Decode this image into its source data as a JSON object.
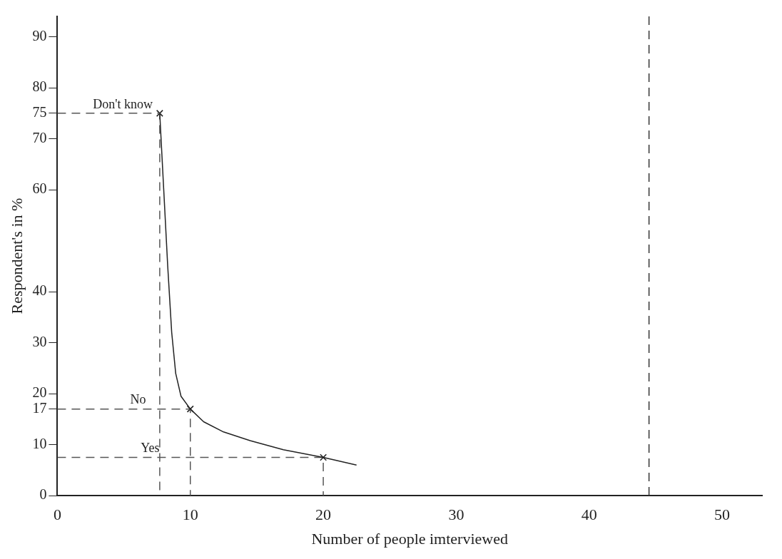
{
  "chart_data": {
    "type": "line",
    "xlabel": "Number of people imterviewed",
    "ylabel": "Respondent's in %",
    "xlim": [
      0,
      53
    ],
    "xticks": [
      0,
      10,
      20,
      30,
      40,
      50
    ],
    "ylim": [
      0,
      94
    ],
    "yticks": [
      0,
      10,
      17,
      20,
      30,
      40,
      60,
      70,
      75,
      80,
      90
    ],
    "series": [
      {
        "color": "#222222",
        "marker": "none",
        "line_style": "solid",
        "x": [
          7.7,
          8.0,
          8.3,
          8.6,
          8.9,
          9.3,
          10,
          11,
          12.5,
          14.5,
          17,
          20,
          22.5
        ],
        "values": [
          75,
          60,
          45,
          32,
          24,
          19.5,
          17,
          14.5,
          12.5,
          10.8,
          9,
          7.5,
          6
        ]
      },
      {
        "name": "Don't know",
        "color": "#555555",
        "marker": "none",
        "line_style": "dashed",
        "x": [
          0,
          7.7,
          7.7
        ],
        "values": [
          75,
          75,
          0
        ]
      },
      {
        "name": "No",
        "color": "#555555",
        "marker": "none",
        "line_style": "dashed",
        "x": [
          0,
          10,
          10
        ],
        "values": [
          17,
          17,
          0
        ]
      },
      {
        "name": "Yes",
        "color": "#555555",
        "marker": "none",
        "line_style": "dashed",
        "x": [
          0,
          20,
          20
        ],
        "values": [
          7.5,
          7.5,
          0
        ]
      },
      {
        "type": "scatter",
        "color": "#222222",
        "marker": "cross",
        "x": [
          7.7,
          10,
          20
        ],
        "values": [
          75,
          17,
          7.5
        ]
      }
    ],
    "ref_lines": [
      {
        "axis": "x",
        "value": 44.5,
        "line_style": "dashed",
        "color": "#333333"
      }
    ],
    "grid": false,
    "legend": false
  }
}
